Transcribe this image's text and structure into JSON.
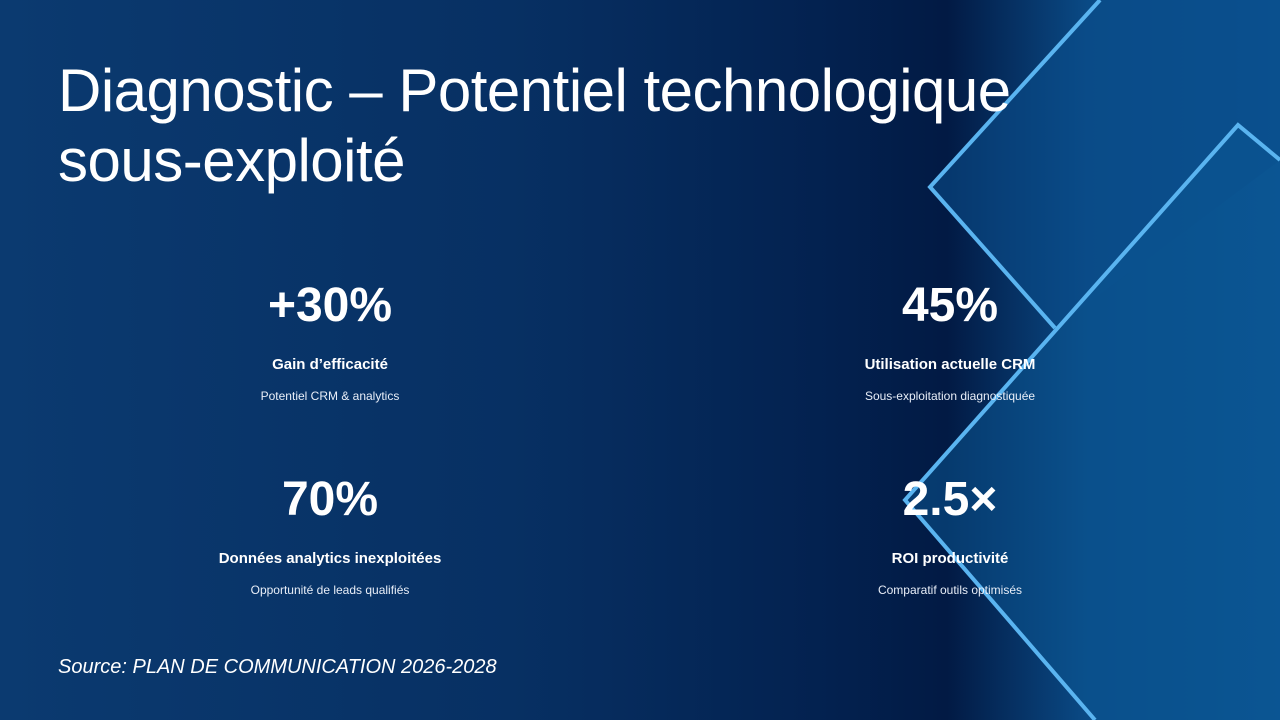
{
  "title": "Diagnostic – Potentiel technologique sous-exploité",
  "stats": [
    {
      "value": "+30%",
      "label": "Gain d’efficacité",
      "sub": "Potentiel CRM & analytics"
    },
    {
      "value": "45%",
      "label": "Utilisation actuelle CRM",
      "sub": "Sous-exploitation diagnostiquée"
    },
    {
      "value": "70%",
      "label": "Données analytics inexploitées",
      "sub": "Opportunité de leads qualifiés"
    },
    {
      "value": "2.5×",
      "label": "ROI productivité",
      "sub": "Comparatif outils optimisés"
    }
  ],
  "source": "Source: PLAN DE COMMUNICATION 2026-2028",
  "colors": {
    "accent": "#5ab4f0",
    "background": "#03214f"
  }
}
